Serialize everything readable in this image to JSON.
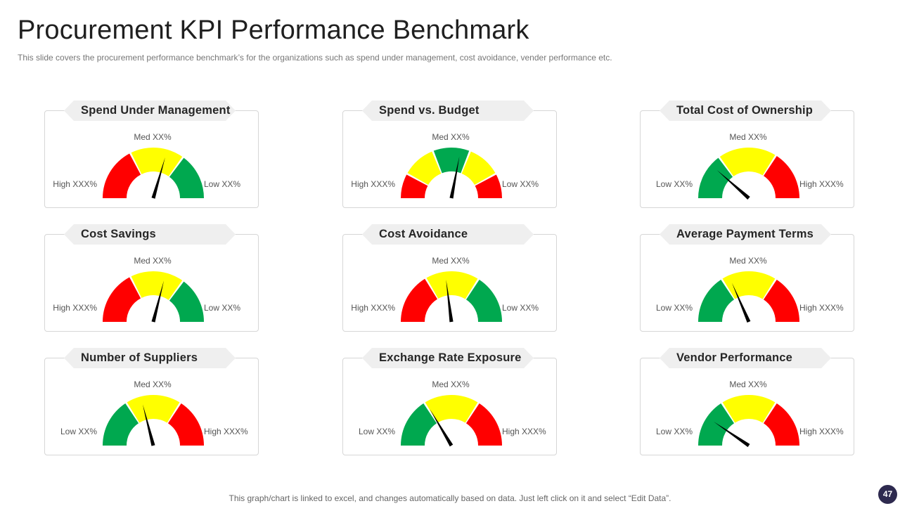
{
  "title": "Procurement KPI Performance Benchmark",
  "subtitle": "This slide covers the procurement performance benchmark’s for the organizations such as spend under management, cost avoidance, vender performance etc.",
  "footer": "This graph/chart is linked to excel,  and changes automatically based on data. Just left click on it and select “Edit Data”.",
  "page_number": "47",
  "colors": {
    "red": "#ff0000",
    "yellow": "#ffff00",
    "green": "#00a84f",
    "needle": "#000000"
  },
  "chart_data": [
    {
      "type": "gauge",
      "title": "Spend Under Management",
      "label_left": "High XXX%",
      "label_med": "Med XX%",
      "label_right": "Low XX%",
      "segments": [
        {
          "color": "red",
          "value": 35
        },
        {
          "color": "yellow",
          "value": 35
        },
        {
          "color": "green",
          "value": 30
        }
      ],
      "needle": 59
    },
    {
      "type": "gauge",
      "title": "Spend vs. Budget",
      "label_left": "High XXX%",
      "label_med": "Med XX%",
      "label_right": "Low XX%",
      "segments": [
        {
          "color": "red",
          "value": 16
        },
        {
          "color": "yellow",
          "value": 22
        },
        {
          "color": "green",
          "value": 24
        },
        {
          "color": "yellow",
          "value": 22
        },
        {
          "color": "red",
          "value": 16
        }
      ],
      "needle": 56
    },
    {
      "type": "gauge",
      "title": "Total Cost of Ownership",
      "label_left": "Low XX%",
      "label_med": "Med XX%",
      "label_right": "High XXX%",
      "segments": [
        {
          "color": "green",
          "value": 30
        },
        {
          "color": "yellow",
          "value": 38
        },
        {
          "color": "red",
          "value": 32
        }
      ],
      "needle": 23
    },
    {
      "type": "gauge",
      "title": "Cost Savings",
      "label_left": "High XXX%",
      "label_med": "Med XX%",
      "label_right": "Low XX%",
      "segments": [
        {
          "color": "red",
          "value": 35
        },
        {
          "color": "yellow",
          "value": 35
        },
        {
          "color": "green",
          "value": 30
        }
      ],
      "needle": 58
    },
    {
      "type": "gauge",
      "title": "Cost Avoidance",
      "label_left": "High XXX%",
      "label_med": "Med XX%",
      "label_right": "Low XX%",
      "segments": [
        {
          "color": "red",
          "value": 33
        },
        {
          "color": "yellow",
          "value": 35
        },
        {
          "color": "green",
          "value": 32
        }
      ],
      "needle": 46
    },
    {
      "type": "gauge",
      "title": "Average Payment Terms",
      "label_left": "Low XX%",
      "label_med": "Med XX%",
      "label_right": "High XXX%",
      "segments": [
        {
          "color": "green",
          "value": 32
        },
        {
          "color": "yellow",
          "value": 36
        },
        {
          "color": "red",
          "value": 32
        }
      ],
      "needle": 37
    },
    {
      "type": "gauge",
      "title": "Number of Suppliers",
      "label_left": "Low XX%",
      "label_med": "Med XX%",
      "label_right": "High XXX%",
      "segments": [
        {
          "color": "green",
          "value": 32
        },
        {
          "color": "yellow",
          "value": 36
        },
        {
          "color": "red",
          "value": 32
        }
      ],
      "needle": 42
    },
    {
      "type": "gauge",
      "title": "Exchange Rate Exposure",
      "label_left": "Low XX%",
      "label_med": "Med XX%",
      "label_right": "High XXX%",
      "segments": [
        {
          "color": "green",
          "value": 32
        },
        {
          "color": "yellow",
          "value": 36
        },
        {
          "color": "red",
          "value": 32
        }
      ],
      "needle": 33
    },
    {
      "type": "gauge",
      "title": "Vendor Performance",
      "label_left": "Low XX%",
      "label_med": "Med XX%",
      "label_right": "High XXX%",
      "segments": [
        {
          "color": "green",
          "value": 32
        },
        {
          "color": "yellow",
          "value": 36
        },
        {
          "color": "red",
          "value": 32
        }
      ],
      "needle": 19
    }
  ]
}
